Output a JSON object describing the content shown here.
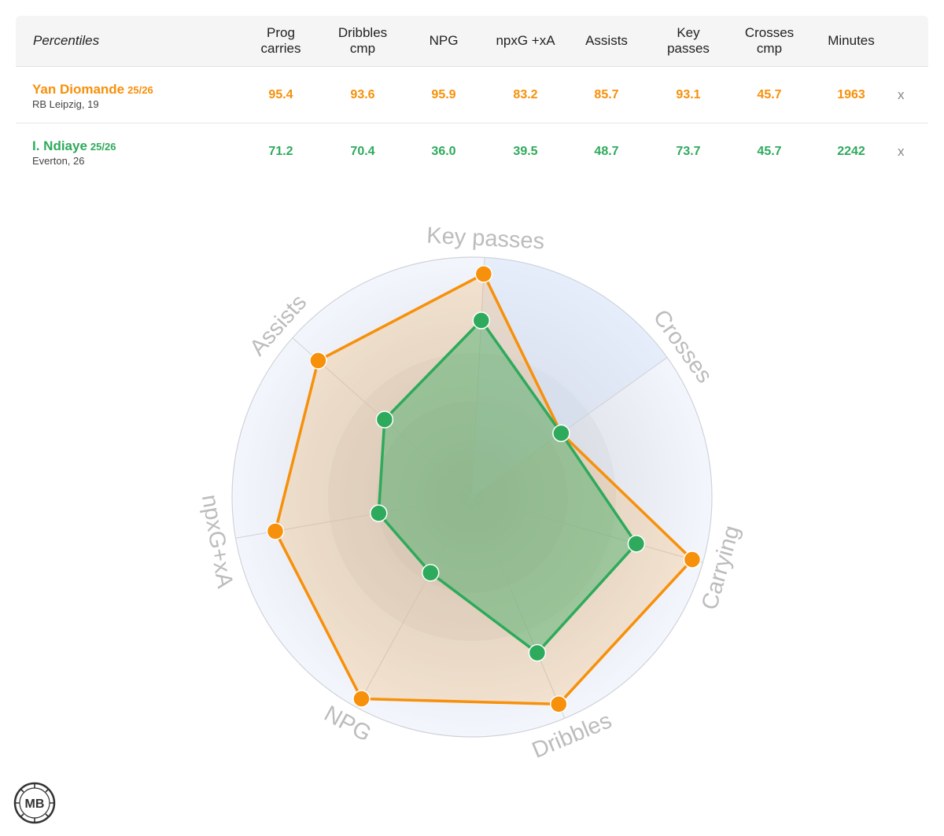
{
  "table": {
    "first_header": "Percentiles",
    "columns": [
      "Prog\ncarries",
      "Dribbles\ncmp",
      "NPG",
      "npxG +xA",
      "Assists",
      "Key\npasses",
      "Crosses\ncmp",
      "Minutes"
    ],
    "players": [
      {
        "name": "Yan Diomande",
        "season": "25/26",
        "team": "RB Leipzig, 19",
        "color": "#f7900a",
        "values": [
          "95.4",
          "93.6",
          "95.9",
          "83.2",
          "85.7",
          "93.1",
          "45.7",
          "1963"
        ],
        "remove_label": "x"
      },
      {
        "name": "I. Ndiaye",
        "season": "25/26",
        "team": "Everton, 26",
        "color": "#2eaa5c",
        "values": [
          "71.2",
          "70.4",
          "36.0",
          "39.5",
          "48.7",
          "73.7",
          "45.7",
          "2242"
        ],
        "remove_label": "x"
      }
    ]
  },
  "chart_data": {
    "type": "radar",
    "axes": [
      "Key passes",
      "Crosses",
      "Carrying",
      "Dribbles",
      "NPG",
      "npxG+xA",
      "Assists"
    ],
    "range": [
      0,
      100
    ],
    "series": [
      {
        "name": "Yan Diomande",
        "color": "#f7900a",
        "values": [
          93.1,
          45.7,
          95.4,
          93.6,
          95.9,
          83.2,
          85.7
        ]
      },
      {
        "name": "I. Ndiaye",
        "color": "#2eaa5c",
        "values": [
          73.7,
          45.7,
          71.2,
          70.4,
          36.0,
          39.5,
          48.7
        ]
      }
    ]
  },
  "logo": {
    "text": "MB"
  }
}
